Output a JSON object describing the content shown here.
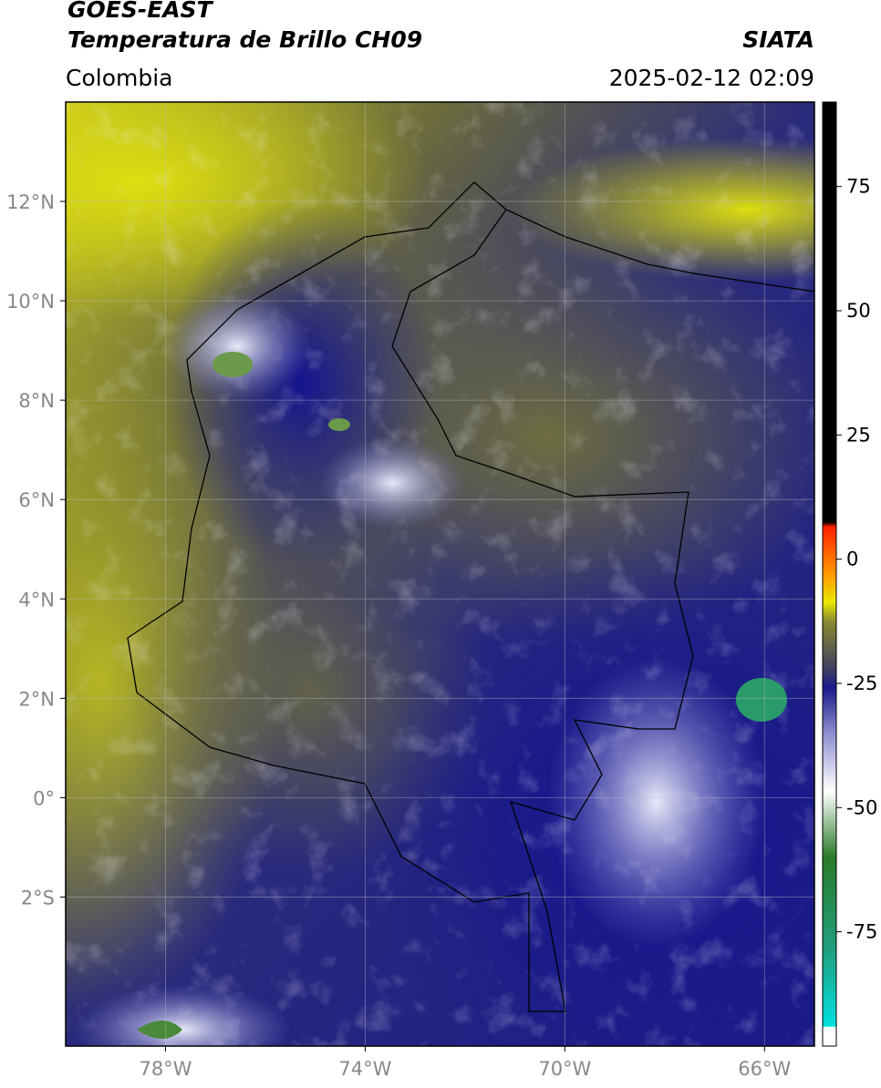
{
  "header": {
    "title": "GOES-EAST",
    "subtitle": "Temperatura de Brillo CH09",
    "source": "SIATA",
    "region": "Colombia",
    "datetime": "2025-02-12 02:09"
  },
  "map": {
    "lon_range": [
      -80,
      -65
    ],
    "lat_range": [
      -5,
      14
    ],
    "lat_ticks": [
      {
        "value": 12,
        "label": "12°N"
      },
      {
        "value": 10,
        "label": "10°N"
      },
      {
        "value": 8,
        "label": "8°N"
      },
      {
        "value": 6,
        "label": "6°N"
      },
      {
        "value": 4,
        "label": "4°N"
      },
      {
        "value": 2,
        "label": "2°N"
      },
      {
        "value": 0,
        "label": "0°"
      },
      {
        "value": -2,
        "label": "2°S"
      }
    ],
    "lon_ticks": [
      {
        "value": -78,
        "label": "78°W"
      },
      {
        "value": -74,
        "label": "74°W"
      },
      {
        "value": -70,
        "label": "70°W"
      },
      {
        "value": -66,
        "label": "66°W"
      }
    ]
  },
  "colorbar": {
    "range": [
      -98,
      92
    ],
    "ticks": [
      75,
      50,
      25,
      0,
      -25,
      -50,
      -75
    ]
  }
}
